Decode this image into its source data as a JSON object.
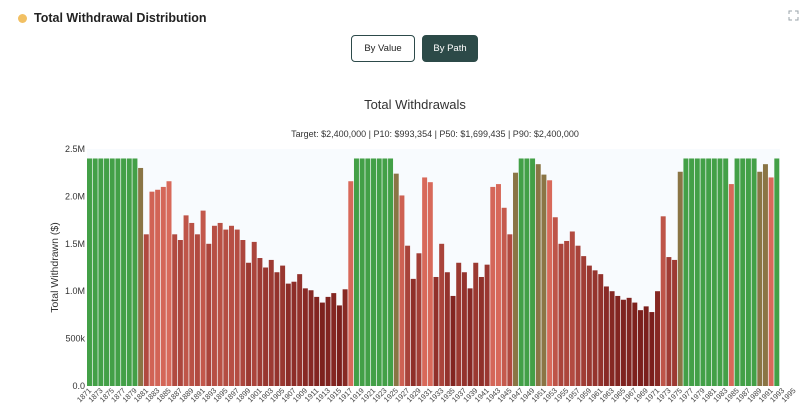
{
  "header": {
    "title": "Total Withdrawal Distribution",
    "dot_color": "#f2c063",
    "expand_icon": "expand-icon"
  },
  "toggle": {
    "by_value_label": "By Value",
    "by_path_label": "By Path",
    "selected": "By Path"
  },
  "chart_data": {
    "type": "bar",
    "title": "Total Withdrawals",
    "subtitle": "Target: $2,400,000 | P10: $993,354 | P50: $1,699,435 | P90: $2,400,000",
    "xlabel": "",
    "ylabel": "Total Withdrawn ($)",
    "ylim": [
      0,
      2500000
    ],
    "y_ticks": [
      {
        "value": 0,
        "label": "0.0"
      },
      {
        "value": 500000,
        "label": "500k"
      },
      {
        "value": 1000000,
        "label": "1.0M"
      },
      {
        "value": 1500000,
        "label": "1.5M"
      },
      {
        "value": 2000000,
        "label": "2.0M"
      },
      {
        "value": 2500000,
        "label": "2.5M"
      }
    ],
    "grid": false,
    "x_start": 1871,
    "x_tick_labels": [
      "1871",
      "1873",
      "1875",
      "1877",
      "1879",
      "1881",
      "1883",
      "1885",
      "1887",
      "1889",
      "1891",
      "1893",
      "1895",
      "1897",
      "1899",
      "1901",
      "1903",
      "1905",
      "1907",
      "1909",
      "1911",
      "1913",
      "1915",
      "1917",
      "1919",
      "1921",
      "1923",
      "1925",
      "1927",
      "1929",
      "1931",
      "1933",
      "1935",
      "1937",
      "1939",
      "1941",
      "1943",
      "1945",
      "1947",
      "1949",
      "1951",
      "1953",
      "1955",
      "1957",
      "1959",
      "1961",
      "1963",
      "1965",
      "1967",
      "1969",
      "1971",
      "1973",
      "1975",
      "1977",
      "1979",
      "1981",
      "1983",
      "1985",
      "1987",
      "1989",
      "1991",
      "1993",
      "1995"
    ],
    "values": [
      2400000,
      2400000,
      2400000,
      2400000,
      2400000,
      2400000,
      2400000,
      2400000,
      2400000,
      2300000,
      1600000,
      2050000,
      2070000,
      2100000,
      2160000,
      1600000,
      1540000,
      1800000,
      1720000,
      1600000,
      1850000,
      1500000,
      1690000,
      1720000,
      1650000,
      1690000,
      1650000,
      1540000,
      1300000,
      1520000,
      1350000,
      1250000,
      1330000,
      1200000,
      1270000,
      1080000,
      1100000,
      1180000,
      1030000,
      1010000,
      940000,
      880000,
      940000,
      980000,
      850000,
      1020000,
      2160000,
      2400000,
      2400000,
      2400000,
      2400000,
      2400000,
      2400000,
      2400000,
      2240000,
      2010000,
      1480000,
      1130000,
      1400000,
      2200000,
      2150000,
      1150000,
      1500000,
      1200000,
      950000,
      1300000,
      1200000,
      1030000,
      1300000,
      1150000,
      1280000,
      2100000,
      2130000,
      1880000,
      1600000,
      2250000,
      2400000,
      2400000,
      2400000,
      2340000,
      2230000,
      2170000,
      1780000,
      1500000,
      1530000,
      1630000,
      1480000,
      1370000,
      1270000,
      1220000,
      1180000,
      1050000,
      1000000,
      950000,
      910000,
      930000,
      880000,
      800000,
      840000,
      780000,
      1000000,
      1790000,
      1360000,
      1330000,
      2260000,
      2400000,
      2400000,
      2400000,
      2400000,
      2400000,
      2400000,
      2400000,
      2400000,
      2130000,
      2400000,
      2400000,
      2400000,
      2400000,
      2260000,
      2340000,
      2200000,
      2400000
    ],
    "target": 2400000,
    "percentiles": {
      "p10": 993354,
      "p50": 1699435,
      "p90": 2400000
    },
    "colors": {
      "success": "#43a047",
      "near_success": "#8a7545",
      "high": "#d8695a",
      "low": "#7b1f1c",
      "plot_bg": "#f8fbfe"
    }
  }
}
